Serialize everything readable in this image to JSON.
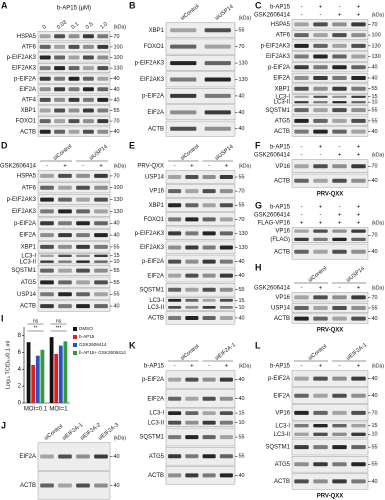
{
  "panels": [
    {
      "letter": "A",
      "kda": "(kDa)",
      "header": [
        {
          "label": "b-AP15 (μM)"
        },
        {
          "groups": [
            "0",
            "0.03",
            "0.1",
            "0.5",
            "1.0"
          ]
        }
      ],
      "rows": [
        {
          "labels": [
            "HSPA5"
          ],
          "markers": [
            "70"
          ]
        },
        {
          "labels": [
            "ATF6"
          ],
          "markers": [
            "100"
          ]
        },
        {
          "labels": [
            "p-EIF2AK3"
          ],
          "markers": [
            "100"
          ]
        },
        {
          "labels": [
            "EIF2AK3"
          ],
          "markers": [
            "130"
          ]
        },
        {
          "labels": [
            "p-EIF2A"
          ],
          "markers": [
            "40"
          ]
        },
        {
          "labels": [
            "EIF2A"
          ],
          "markers": [
            "40"
          ]
        },
        {
          "labels": [
            "ATF4"
          ],
          "markers": [
            "40"
          ]
        },
        {
          "labels": [
            "XBP1"
          ],
          "markers": [
            "55"
          ]
        },
        {
          "labels": [
            "FOXO1"
          ],
          "markers": [
            "70"
          ]
        },
        {
          "labels": [
            "ACTB"
          ],
          "markers": [
            "40"
          ]
        }
      ]
    },
    {
      "letter": "B",
      "kda": "(kDa)",
      "header": [
        {
          "groups": [
            "siControl",
            "siUSP14"
          ]
        }
      ],
      "rows": [
        {
          "labels": [
            "XBP1"
          ],
          "markers": [
            "55"
          ]
        },
        {
          "labels": [
            "FOXO1"
          ],
          "markers": [
            "70"
          ]
        },
        {
          "labels": [
            "p-EIF2AK3"
          ],
          "markers": [
            "130"
          ]
        },
        {
          "labels": [
            "EIF2AK3"
          ],
          "markers": [
            "130"
          ]
        },
        {
          "labels": [
            "p-EIF2A"
          ],
          "markers": [
            "40"
          ]
        },
        {
          "labels": [
            "EIF2A"
          ],
          "markers": [
            "40"
          ]
        },
        {
          "labels": [
            "ACTB"
          ],
          "markers": [
            "40"
          ]
        }
      ]
    },
    {
      "letter": "C",
      "kda": "(kDa)",
      "header": [
        {
          "label": "b-AP15",
          "marks": [
            "-",
            "+",
            "-",
            "+"
          ]
        },
        {
          "label": "GSK2606414",
          "marks": [
            "-",
            "-",
            "+",
            "+"
          ]
        }
      ],
      "rows": [
        {
          "labels": [
            "HSPA5"
          ],
          "markers": [
            "70"
          ]
        },
        {
          "labels": [
            "ATF6"
          ],
          "markers": [
            "100"
          ]
        },
        {
          "labels": [
            "p-EIF2AK3"
          ],
          "markers": [
            "130"
          ]
        },
        {
          "labels": [
            "EIF2AK3"
          ],
          "markers": [
            "130"
          ]
        },
        {
          "labels": [
            "p-EIF2A"
          ],
          "markers": [
            "40"
          ]
        },
        {
          "labels": [
            "EIF2A"
          ],
          "markers": [
            "40"
          ]
        },
        {
          "labels": [
            "XBP1"
          ],
          "markers": [
            "55"
          ]
        },
        {
          "labels": [
            "LC3-I",
            "LC3-II"
          ],
          "markers": [
            "15",
            "10"
          ]
        },
        {
          "labels": [
            "SQSTM1"
          ],
          "markers": [
            "55"
          ]
        },
        {
          "labels": [
            "ATG5"
          ],
          "markers": [
            "55"
          ]
        },
        {
          "labels": [
            "ACTB"
          ],
          "markers": [
            "40"
          ]
        }
      ]
    },
    {
      "letter": "D",
      "kda": "(kDa)",
      "header": [
        {
          "groups": [
            "siControl",
            "siUSP14"
          ]
        },
        {
          "label": "GSK2606414",
          "marks": [
            "-",
            "+",
            "-",
            "+"
          ]
        }
      ],
      "rows": [
        {
          "labels": [
            "HSPA5"
          ],
          "markers": [
            "70"
          ]
        },
        {
          "labels": [
            "ATF6"
          ],
          "markers": [
            "100"
          ]
        },
        {
          "labels": [
            "p-EIF2AK3"
          ],
          "markers": [
            "130"
          ]
        },
        {
          "labels": [
            "EIF2AK3"
          ],
          "markers": [
            "130"
          ]
        },
        {
          "labels": [
            "p-EIF2A"
          ],
          "markers": [
            "40"
          ]
        },
        {
          "labels": [
            "EIF2A"
          ],
          "markers": [
            "40"
          ]
        },
        {
          "labels": [
            "XBP1"
          ],
          "markers": [
            "55"
          ]
        },
        {
          "labels": [
            "LC3-I",
            "LC3-II"
          ],
          "markers": [
            "15",
            "10"
          ]
        },
        {
          "labels": [
            "SQSTM1"
          ],
          "markers": [
            "55"
          ]
        },
        {
          "labels": [
            "ATG5"
          ],
          "markers": [
            "55"
          ]
        },
        {
          "labels": [
            "USP14"
          ],
          "markers": [
            "55"
          ]
        },
        {
          "labels": [
            "ACTB"
          ],
          "markers": [
            "40"
          ]
        }
      ]
    },
    {
      "letter": "E",
      "kda": "(kDa)",
      "header": [
        {
          "groups": [
            "siControl",
            "siUSP14"
          ]
        },
        {
          "label": "PRV-QXX",
          "marks": [
            "-",
            "+",
            "-",
            "+"
          ]
        }
      ],
      "rows": [
        {
          "labels": [
            "USP14"
          ],
          "markers": [
            "55"
          ]
        },
        {
          "labels": [
            "VP16"
          ],
          "markers": [
            "70"
          ]
        },
        {
          "labels": [
            "XBP1"
          ],
          "markers": [
            "55"
          ]
        },
        {
          "labels": [
            "FOXO1"
          ],
          "markers": [
            "70"
          ]
        },
        {
          "labels": [
            "p-EIF2AK3"
          ],
          "markers": [
            "130"
          ]
        },
        {
          "labels": [
            "EIF2AK3"
          ],
          "markers": [
            "130"
          ]
        },
        {
          "labels": [
            "p-EIF2A"
          ],
          "markers": [
            "40"
          ]
        },
        {
          "labels": [
            "EIF2A"
          ],
          "markers": [
            "40"
          ]
        },
        {
          "labels": [
            "SQSTM1"
          ],
          "markers": [
            "55"
          ]
        },
        {
          "labels": [
            "LC3-I",
            "LC3-II"
          ],
          "markers": [
            "15",
            "10"
          ]
        },
        {
          "labels": [
            "ACTB"
          ],
          "markers": [
            "40"
          ]
        }
      ]
    },
    {
      "letter": "F",
      "kda": "(kDa)",
      "footer": "PRV-QXX",
      "header": [
        {
          "label": "b-AP15",
          "marks": [
            "-",
            "+",
            "-",
            "+"
          ]
        },
        {
          "label": "GSK2606414",
          "marks": [
            "-",
            "-",
            "+",
            "+"
          ]
        }
      ],
      "rows": [
        {
          "labels": [
            "VP16"
          ],
          "markers": [
            "70"
          ]
        },
        {
          "labels": [
            "ACTB"
          ],
          "markers": [
            "40"
          ]
        }
      ]
    },
    {
      "letter": "G",
      "kda": "(kDa)",
      "header": [
        {
          "label": "b-AP15",
          "marks": [
            "-",
            "+",
            "-",
            "+"
          ]
        },
        {
          "label": "GSK2606414",
          "marks": [
            "-",
            "-",
            "+",
            "+"
          ]
        },
        {
          "label": "FLAG-VP16",
          "marks": [
            "+",
            "+",
            "+",
            "+"
          ]
        }
      ],
      "rows": [
        {
          "labels": [
            "VP16",
            "(FLAG)"
          ],
          "markers": [
            "70"
          ]
        },
        {
          "labels": [
            "ACTB"
          ],
          "markers": [
            "40"
          ]
        }
      ]
    },
    {
      "letter": "H",
      "kda": "(kDa)",
      "footer": "PRV-QXX",
      "header": [
        {
          "groups": [
            "siControl",
            "siUSP14"
          ]
        },
        {
          "label": "GSK2606414",
          "marks": [
            "-",
            "+",
            "-",
            "+"
          ]
        }
      ],
      "rows": [
        {
          "labels": [
            "VP16"
          ],
          "markers": [
            "70"
          ]
        },
        {
          "labels": [
            "USP14"
          ],
          "markers": [
            "55"
          ]
        },
        {
          "labels": [
            "ACTB"
          ],
          "markers": [
            "40"
          ]
        }
      ]
    },
    {
      "letter": "I",
      "chart": {
        "type": "bar",
        "ylabel": "Log₁₀ TCID₅₀/0.1 ml",
        "categories": [
          "MOI=0.1",
          "MOI=1"
        ],
        "series": [
          {
            "name": "DMSO",
            "color": "#111111",
            "values": [
              7.2,
              7.8
            ]
          },
          {
            "name": "b-AP15",
            "color": "#e02020",
            "values": [
              4.5,
              5.8
            ]
          },
          {
            "name": "GSK2606414",
            "color": "#2a52c8",
            "values": [
              5.6,
              6.8
            ]
          },
          {
            "name": "b-AP15+ GSK2606414",
            "color": "#2e9e3a",
            "values": [
              6.3,
              7.3
            ]
          }
        ],
        "ylim": [
          0,
          9
        ],
        "yticks": [
          0,
          2,
          4,
          6,
          8
        ],
        "annotations": [
          "ns",
          "**",
          "ns",
          "***"
        ]
      }
    },
    {
      "letter": "J",
      "kda": "(kDa)",
      "header": [
        {
          "groups": [
            "siControl",
            "siEIF2A-1",
            "siEIF2A-2",
            "siEIF2A-3"
          ]
        }
      ],
      "rows": [
        {
          "labels": [
            "EIF2A"
          ],
          "markers": [
            "40"
          ]
        },
        {
          "labels": [
            "ACTB"
          ],
          "markers": [
            "40"
          ]
        }
      ]
    },
    {
      "letter": "K",
      "kda": "(kDa)",
      "header": [
        {
          "groups": [
            "siControl",
            "siEIF2A-1"
          ]
        },
        {
          "label": "b-AP15",
          "marks": [
            "-",
            "+",
            "-",
            "+"
          ]
        }
      ],
      "rows": [
        {
          "labels": [
            "p-EIF2A"
          ],
          "markers": [
            "40"
          ]
        },
        {
          "labels": [
            "EIF2A"
          ],
          "markers": [
            "40"
          ]
        },
        {
          "labels": [
            "LC3-I",
            "LC3-II"
          ],
          "markers": [
            "15",
            "10"
          ]
        },
        {
          "labels": [
            "SQSTM1"
          ],
          "markers": [
            "55"
          ]
        },
        {
          "labels": [
            "ATG5"
          ],
          "markers": [
            "55"
          ]
        },
        {
          "labels": [
            "ACTB"
          ],
          "markers": [
            "40"
          ]
        }
      ]
    },
    {
      "letter": "L",
      "kda": "(kDa)",
      "footer": "PRV-QXX",
      "header": [
        {
          "groups": [
            "siControl",
            "siEIF2A-1"
          ]
        },
        {
          "label": "b-AP15",
          "marks": [
            "-",
            "+",
            "-",
            "+"
          ]
        }
      ],
      "rows": [
        {
          "labels": [
            "p-EIF2A"
          ],
          "markers": [
            "40"
          ]
        },
        {
          "labels": [
            "EIF2A"
          ],
          "markers": [
            "40"
          ]
        },
        {
          "labels": [
            "VP16"
          ],
          "markers": [
            "70"
          ]
        },
        {
          "labels": [
            "LC3-I",
            "LC3-II"
          ],
          "markers": [
            "15",
            "10"
          ]
        },
        {
          "labels": [
            "SQSTM1"
          ],
          "markers": [
            "55"
          ]
        },
        {
          "labels": [
            "ATG5"
          ],
          "markers": [
            "55"
          ]
        },
        {
          "labels": [
            "ACTB"
          ],
          "markers": [
            "40"
          ]
        }
      ]
    }
  ]
}
